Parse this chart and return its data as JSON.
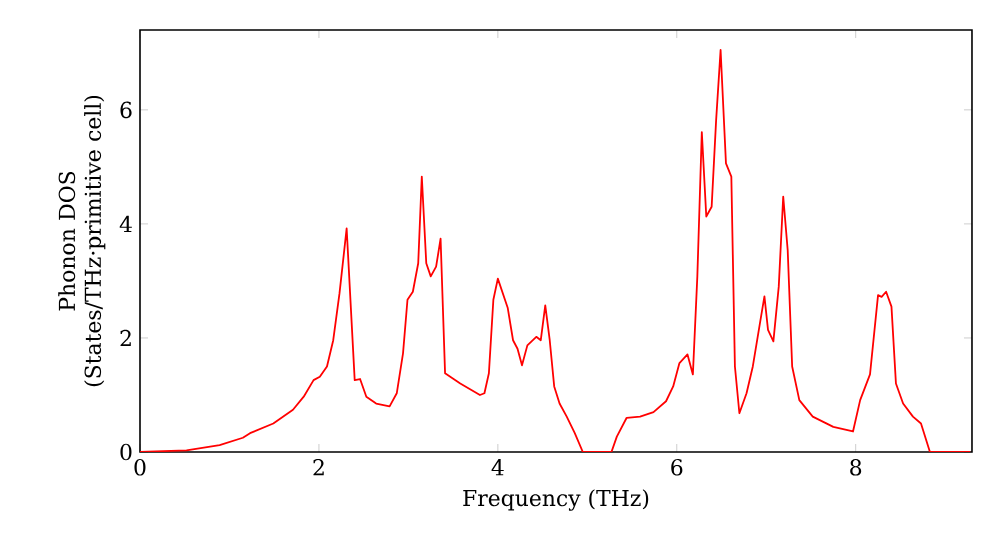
{
  "chart_data": {
    "type": "line",
    "xlabel": "Frequency (THz)",
    "ylabel": "Phonon DOS (States/THz·primitive cell)",
    "xlim": [
      0,
      9.3
    ],
    "ylim": [
      0,
      7.4
    ],
    "xticks": [
      0,
      2,
      4,
      6,
      8
    ],
    "yticks": [
      0,
      2,
      4,
      6
    ],
    "grid": false,
    "series": [
      {
        "color": "#ff0000",
        "x": [
          0,
          0.52,
          0.89,
          1.15,
          1.23,
          1.49,
          1.71,
          1.83,
          1.94,
          2.01,
          2.09,
          2.16,
          2.23,
          2.31,
          2.4,
          2.46,
          2.53,
          2.64,
          2.79,
          2.87,
          2.94,
          2.99,
          3.05,
          3.11,
          3.15,
          3.2,
          3.25,
          3.31,
          3.36,
          3.41,
          3.58,
          3.8,
          3.85,
          3.9,
          3.95,
          4.0,
          4.11,
          4.17,
          4.22,
          4.27,
          4.33,
          4.43,
          4.48,
          4.53,
          4.58,
          4.63,
          4.69,
          4.77,
          4.86,
          4.95,
          5.27,
          5.33,
          5.44,
          5.59,
          5.74,
          5.88,
          5.96,
          6.03,
          6.12,
          6.18,
          6.23,
          6.28,
          6.33,
          6.39,
          6.44,
          6.49,
          6.55,
          6.61,
          6.65,
          6.7,
          6.78,
          6.85,
          6.93,
          6.98,
          7.02,
          7.08,
          7.14,
          7.19,
          7.24,
          7.29,
          7.37,
          7.52,
          7.75,
          7.97,
          8.05,
          8.16,
          8.25,
          8.29,
          8.34,
          8.4,
          8.45,
          8.53,
          8.64,
          8.73,
          8.83,
          9.28
        ],
        "values": [
          0,
          0.03,
          0.12,
          0.25,
          0.33,
          0.5,
          0.74,
          0.97,
          1.26,
          1.32,
          1.5,
          1.96,
          2.78,
          3.92,
          1.26,
          1.28,
          0.97,
          0.85,
          0.8,
          1.03,
          1.73,
          2.67,
          2.81,
          3.31,
          4.83,
          3.31,
          3.08,
          3.25,
          3.74,
          1.38,
          1.2,
          1.0,
          1.03,
          1.38,
          2.67,
          3.04,
          2.53,
          1.96,
          1.81,
          1.52,
          1.87,
          2.02,
          1.96,
          2.57,
          1.96,
          1.15,
          0.85,
          0.62,
          0.33,
          0,
          0,
          0.27,
          0.6,
          0.62,
          0.7,
          0.89,
          1.15,
          1.56,
          1.71,
          1.36,
          3.08,
          5.61,
          4.13,
          4.3,
          5.82,
          7.05,
          5.06,
          4.83,
          1.5,
          0.68,
          1.03,
          1.5,
          2.26,
          2.73,
          2.14,
          1.94,
          2.9,
          4.48,
          3.54,
          1.5,
          0.91,
          0.62,
          0.44,
          0.36,
          0.91,
          1.36,
          2.75,
          2.72,
          2.81,
          2.55,
          1.2,
          0.85,
          0.62,
          0.5,
          0,
          0
        ]
      }
    ]
  }
}
